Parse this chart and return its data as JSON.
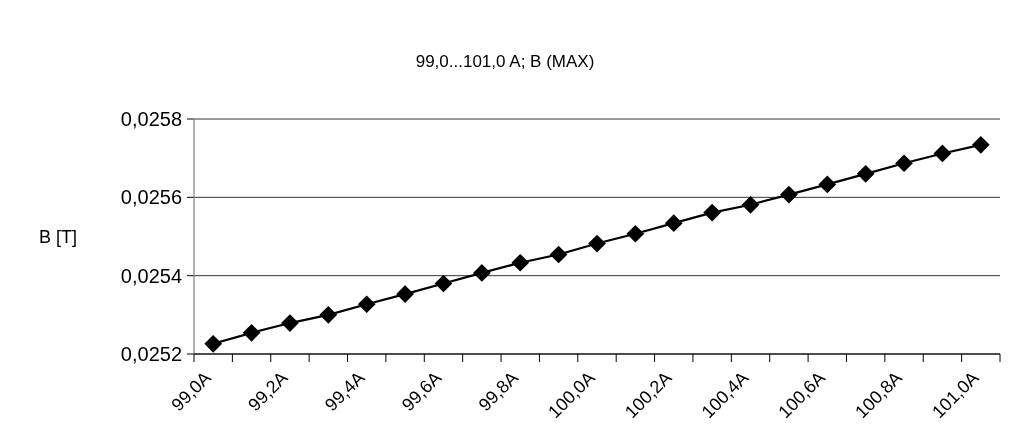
{
  "chart_data": {
    "type": "line",
    "title": "99,0...101,0 A; B (MAX)",
    "ylabel": "B [T]",
    "categories": [
      "99,0A",
      null,
      "99,2A",
      null,
      "99,4A",
      null,
      "99,6A",
      null,
      "99,8A",
      null,
      "100,0A",
      null,
      "100,2A",
      null,
      "100,4A",
      null,
      "100,6A",
      null,
      "100,8A",
      null,
      "101,0A"
    ],
    "series": [
      {
        "color": "#000000",
        "values": [
          0.025226,
          0.025254,
          0.025279,
          0.0253,
          0.025327,
          0.025353,
          0.02538,
          0.025407,
          0.025433,
          0.025454,
          0.025482,
          0.025507,
          0.025534,
          0.025561,
          0.025581,
          0.025607,
          0.025633,
          0.02566,
          0.025687,
          0.025712,
          0.025734
        ]
      }
    ],
    "ylim": [
      0.0252,
      0.0258
    ],
    "yticks": [
      {
        "value": 0.0252,
        "label": "0,0252"
      },
      {
        "value": 0.0254,
        "label": "0,0254"
      },
      {
        "value": 0.0256,
        "label": "0,0256"
      },
      {
        "value": 0.0258,
        "label": "0,0258"
      }
    ],
    "grid": "y",
    "marker": "diamond",
    "line_style": "solid"
  }
}
